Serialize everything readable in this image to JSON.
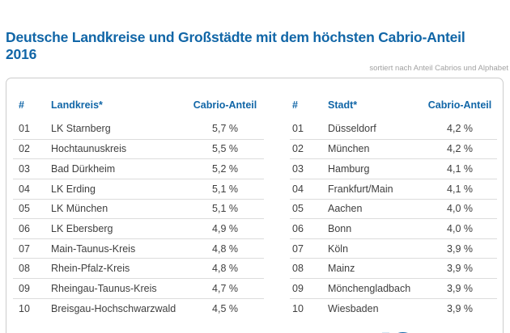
{
  "header": {
    "title": "Deutsche Landkreise und Großstädte mit dem höchsten Cabrio-Anteil 2016",
    "subtitle": "sortiert nach Anteil Cabrios und Alphabet"
  },
  "colors": {
    "accent": "#1166a7",
    "text": "#3f3f3f",
    "muted": "#a2a2a2",
    "card_border": "#cccccc",
    "row_divider": "#dcdcdc",
    "logo_blue": "#1166a7",
    "logo_light_blue": "#7fb2d6"
  },
  "icons": {
    "bottom_logo": "partial-logo-cut-off-at-bottom-edge"
  },
  "chart_data": {
    "type": "table",
    "title": "Deutsche Landkreise und Großstädte mit dem höchsten Cabrio-Anteil 2016",
    "note": "sortiert nach Anteil Cabrios und Alphabet",
    "tables": [
      {
        "name": "landkreise",
        "headers": [
          "#",
          "Landkreis*",
          "Cabrio-Anteil"
        ],
        "rows": [
          [
            "01",
            "LK Starnberg",
            "5,7 %"
          ],
          [
            "02",
            "Hochtaunuskreis",
            "5,5 %"
          ],
          [
            "03",
            "Bad Dürkheim",
            "5,2 %"
          ],
          [
            "04",
            "LK Erding",
            "5,1 %"
          ],
          [
            "05",
            "LK München",
            "5,1 %"
          ],
          [
            "06",
            "LK Ebersberg",
            "4,9 %"
          ],
          [
            "07",
            "Main-Taunus-Kreis",
            "4,8 %"
          ],
          [
            "08",
            "Rhein-Pfalz-Kreis",
            "4,8 %"
          ],
          [
            "09",
            "Rheingau-Taunus-Kreis",
            "4,7 %"
          ],
          [
            "10",
            "Breisgau-Hochschwarzwald",
            "4,5 %"
          ]
        ]
      },
      {
        "name": "staedte",
        "headers": [
          "#",
          "Stadt*",
          "Cabrio-Anteil"
        ],
        "rows": [
          [
            "01",
            "Düsseldorf",
            "4,2 %"
          ],
          [
            "02",
            "München",
            "4,2 %"
          ],
          [
            "03",
            "Hamburg",
            "4,1 %"
          ],
          [
            "04",
            "Frankfurt/Main",
            "4,1 %"
          ],
          [
            "05",
            "Aachen",
            "4,0 %"
          ],
          [
            "06",
            "Bonn",
            "4,0 %"
          ],
          [
            "07",
            "Köln",
            "3,9 %"
          ],
          [
            "08",
            "Mainz",
            "3,9 %"
          ],
          [
            "09",
            "Mönchengladbach",
            "3,9 %"
          ],
          [
            "10",
            "Wiesbaden",
            "3,9 %"
          ]
        ]
      }
    ]
  }
}
